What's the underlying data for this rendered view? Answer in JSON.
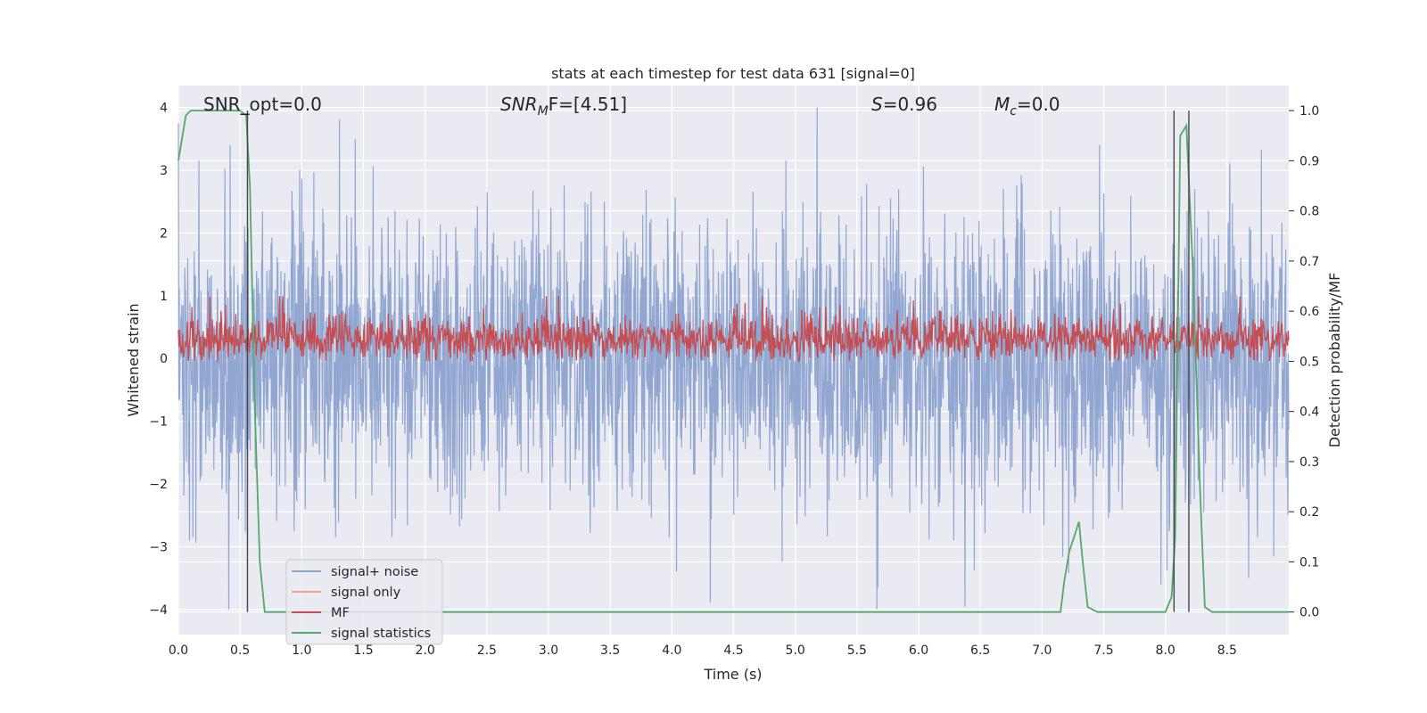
{
  "chart_data": {
    "type": "line",
    "title": "stats at each timestep for test data 631 [signal=0]",
    "xlabel": "Time (s)",
    "ylabel_left": "Whitened strain",
    "ylabel_right": "Detection probability/MF",
    "xlim": [
      0.0,
      9.0
    ],
    "ylim_left": [
      -4.4,
      4.35
    ],
    "ylim_right": [
      -0.045,
      1.05
    ],
    "x_ticks": [
      0.0,
      0.5,
      1.0,
      1.5,
      2.0,
      2.5,
      3.0,
      3.5,
      4.0,
      4.5,
      5.0,
      5.5,
      6.0,
      6.5,
      7.0,
      7.5,
      8.0,
      8.5
    ],
    "x_tick_labels": [
      "0.0",
      "0.5",
      "1.0",
      "1.5",
      "2.0",
      "2.5",
      "3.0",
      "3.5",
      "4.0",
      "4.5",
      "5.0",
      "5.5",
      "6.0",
      "6.5",
      "7.0",
      "7.5",
      "8.0",
      "8.5"
    ],
    "y_left_ticks": [
      -4,
      -3,
      -2,
      -1,
      0,
      1,
      2,
      3,
      4
    ],
    "y_left_tick_labels": [
      "−4",
      "−3",
      "−2",
      "−1",
      "0",
      "1",
      "2",
      "3",
      "4"
    ],
    "y_right_ticks": [
      0.0,
      0.1,
      0.2,
      0.3,
      0.4,
      0.5,
      0.6,
      0.7,
      0.8,
      0.9,
      1.0
    ],
    "y_right_tick_labels": [
      "0.0",
      "0.1",
      "0.2",
      "0.3",
      "0.4",
      "0.5",
      "0.6",
      "0.7",
      "0.8",
      "0.9",
      "1.0"
    ],
    "grid": true,
    "legend_position": "lower-left",
    "annotations": {
      "snr_opt": "SNR_opt=0.0",
      "snr_mf_main": "SNR",
      "snr_mf_sub": "M",
      "snr_mf_rest": "F=[4.51]",
      "s_italic": "S",
      "s_rest": "=0.96",
      "mc_main": "M",
      "mc_sub": "c",
      "mc_rest": "=0.0"
    },
    "series": [
      {
        "name": "signal+ noise",
        "color": "#8ca3cf",
        "axis": "left",
        "note_values": "dense noise, amplitude roughly -4 to 4 on left axis"
      },
      {
        "name": "signal only",
        "color": "#e8a98a",
        "axis": "left",
        "values": []
      },
      {
        "name": "MF",
        "color": "#c44e52",
        "axis": "right",
        "band": [
          0.5,
          0.62
        ]
      },
      {
        "name": "signal statistics",
        "color": "#55a868",
        "axis": "right",
        "x": [
          0.0,
          0.06,
          0.1,
          0.2,
          0.3,
          0.4,
          0.5,
          0.55,
          0.58,
          0.62,
          0.66,
          0.7,
          1.0,
          2.0,
          3.0,
          4.0,
          5.0,
          6.0,
          7.0,
          7.15,
          7.18,
          7.22,
          7.26,
          7.3,
          7.33,
          7.37,
          7.45,
          7.6,
          8.0,
          8.05,
          8.08,
          8.12,
          8.17,
          8.22,
          8.28,
          8.32,
          8.38,
          8.5,
          9.0
        ],
        "y": [
          0.9,
          0.99,
          1.0,
          1.0,
          1.0,
          1.0,
          1.0,
          0.99,
          0.85,
          0.4,
          0.1,
          0.0,
          0.0,
          0.0,
          0.0,
          0.0,
          0.0,
          0.0,
          0.0,
          0.0,
          0.06,
          0.12,
          0.15,
          0.18,
          0.1,
          0.01,
          0.0,
          0.0,
          0.0,
          0.03,
          0.15,
          0.95,
          0.97,
          0.7,
          0.25,
          0.01,
          0.0,
          0.0,
          0.0
        ]
      }
    ],
    "vertical_markers_x": [
      0.56,
      8.07,
      8.19
    ],
    "legend": [
      {
        "label": "signal+ noise",
        "color": "#8ca3cf"
      },
      {
        "label": "signal only",
        "color": "#e8a98a"
      },
      {
        "label": "MF",
        "color": "#c44e52"
      },
      {
        "label": "signal statistics",
        "color": "#55a868"
      }
    ],
    "colors": {
      "plot_bg": "#eaeaf2",
      "grid": "#ffffff",
      "text": "#262626",
      "marker": "#444444"
    }
  }
}
